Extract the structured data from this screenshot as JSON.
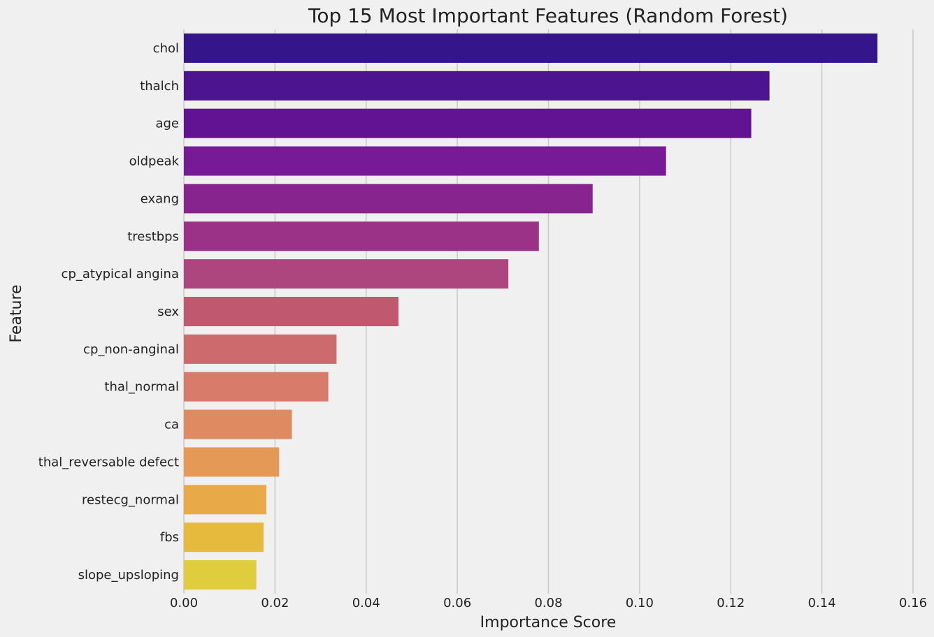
{
  "chart_data": {
    "type": "bar",
    "orientation": "horizontal",
    "title": "Top 15 Most Important Features (Random Forest)",
    "xlabel": "Importance Score",
    "ylabel": "Feature",
    "xlim": [
      0,
      0.16
    ],
    "xticks": [
      "0.00",
      "0.02",
      "0.04",
      "0.06",
      "0.08",
      "0.10",
      "0.12",
      "0.14",
      "0.16"
    ],
    "grid": "vertical",
    "palette": "plasma",
    "background": "#f0f0f0",
    "categories": [
      "chol",
      "thalch",
      "age",
      "oldpeak",
      "exang",
      "trestbps",
      "cp_atypical angina",
      "sex",
      "cp_non-anginal",
      "thal_normal",
      "ca",
      "thal_reversable defect",
      "restecg_normal",
      "fbs",
      "slope_upsloping"
    ],
    "values": [
      0.1522,
      0.1285,
      0.1245,
      0.1058,
      0.0897,
      0.0779,
      0.0712,
      0.0471,
      0.0335,
      0.0317,
      0.0237,
      0.0209,
      0.0181,
      0.0175,
      0.0159
    ],
    "colors": [
      "#35168a",
      "#4c148f",
      "#621394",
      "#771a98",
      "#88248e",
      "#9b3287",
      "#ad457e",
      "#c05870",
      "#cc6a6e",
      "#d87b6a",
      "#df8a61",
      "#e49a56",
      "#e8aa48",
      "#e5ba3d",
      "#dfcd3e"
    ]
  }
}
